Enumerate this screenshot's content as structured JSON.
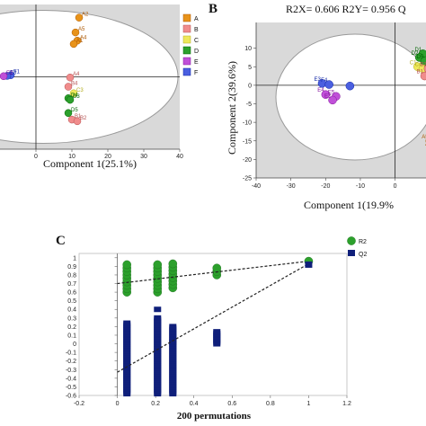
{
  "group_colors": {
    "A": "#e8931a",
    "B": "#f08c8c",
    "C": "#eee85a",
    "D": "#2ca02c",
    "E": "#c050d8",
    "F": "#4a5fe0"
  },
  "chart_data": [
    {
      "type": "scatter",
      "xlabel": "Component 1(25.1%)",
      "ylabel": "",
      "xlim": [
        -10,
        40
      ],
      "ylim": [
        -22,
        22
      ],
      "xticks": [
        0,
        10,
        20,
        30,
        40
      ],
      "legend": {
        "placement": "right",
        "entries": [
          "A",
          "B",
          "C",
          "D",
          "E",
          "F"
        ]
      },
      "points": [
        {
          "g": "A",
          "x": 12,
          "y": 18,
          "label": "A2"
        },
        {
          "g": "A",
          "x": 11,
          "y": 13.5,
          "label": "A5"
        },
        {
          "g": "A",
          "x": 11.5,
          "y": 11,
          "label": "A4"
        },
        {
          "g": "A",
          "x": 10.5,
          "y": 10,
          "label": "A1"
        },
        {
          "g": "F",
          "x": -7,
          "y": 0.5,
          "label": "F1"
        },
        {
          "g": "F",
          "x": -8,
          "y": 0.3,
          "label": "E3"
        },
        {
          "g": "E",
          "x": -9,
          "y": 0.2,
          "label": "E2"
        },
        {
          "g": "B",
          "x": 9.5,
          "y": -0.2,
          "label": "A4"
        },
        {
          "g": "B",
          "x": 9,
          "y": -3,
          "label": "B4"
        },
        {
          "g": "C",
          "x": 10.5,
          "y": -5,
          "label": "C3"
        },
        {
          "g": "D",
          "x": 9,
          "y": -6.5,
          "label": "D4"
        },
        {
          "g": "D",
          "x": 9.5,
          "y": -7,
          "label": "D3"
        },
        {
          "g": "D",
          "x": 9,
          "y": -11,
          "label": "D5"
        },
        {
          "g": "B",
          "x": 10,
          "y": -13,
          "label": "B1"
        },
        {
          "g": "B",
          "x": 11.5,
          "y": -13.5,
          "label": "B2"
        }
      ]
    },
    {
      "type": "scatter",
      "title": "R2X= 0.606  R2Y= 0.956  Q",
      "xlabel": "Component 1(19.9%",
      "ylabel": "Component 2(39.6%)",
      "xlim": [
        -40,
        12
      ],
      "ylim": [
        -25,
        15
      ],
      "xticks": [
        -40,
        -30,
        -20,
        -10,
        0,
        10
      ],
      "yticks": [
        -25,
        -20,
        -15,
        -10,
        -5,
        0,
        5,
        10
      ],
      "points": [
        {
          "g": "D",
          "x": 8,
          "y": 8.5,
          "label": "D1"
        },
        {
          "g": "D",
          "x": 7,
          "y": 7.5,
          "label": "D2"
        },
        {
          "g": "D",
          "x": 8.5,
          "y": 6.5,
          "label": "D5"
        },
        {
          "g": "C",
          "x": 6.5,
          "y": 5,
          "label": "C1"
        },
        {
          "g": "C",
          "x": 8,
          "y": 4.5,
          "label": "C4"
        },
        {
          "g": "B",
          "x": 9.5,
          "y": 4.5,
          "label": "B2"
        },
        {
          "g": "B",
          "x": 8.5,
          "y": 2.5,
          "label": "B1"
        },
        {
          "g": "F",
          "x": -21,
          "y": 0.5,
          "label": "E3"
        },
        {
          "g": "F",
          "x": -19,
          "y": 0.2,
          "label": "F4"
        },
        {
          "g": "F",
          "x": -13,
          "y": -0.2,
          "label": ""
        },
        {
          "g": "E",
          "x": -20,
          "y": -2.5,
          "label": "E4"
        },
        {
          "g": "E",
          "x": -17,
          "y": -3,
          "label": "E5"
        },
        {
          "g": "E",
          "x": -18,
          "y": -4,
          "label": "E2"
        },
        {
          "g": "A",
          "x": 10,
          "y": -15,
          "label": "A5"
        },
        {
          "g": "A",
          "x": 11,
          "y": -17,
          "label": "A3"
        },
        {
          "g": "A",
          "x": 11,
          "y": -18.5,
          "label": ""
        },
        {
          "g": "A",
          "x": 11.5,
          "y": -19.5,
          "label": ""
        }
      ]
    },
    {
      "type": "scatter",
      "xlabel": "200 permutations",
      "ylabel": "",
      "xlim": [
        -0.2,
        1.2
      ],
      "ylim": [
        -0.6,
        1.05
      ],
      "xticks": [
        -0.2,
        0,
        0.2,
        0.4,
        0.6,
        0.8,
        1,
        1.2
      ],
      "yticks": [
        -0.6,
        -0.5,
        -0.4,
        -0.3,
        -0.2,
        -0.1,
        0,
        0.1,
        0.2,
        0.3,
        0.4,
        0.5,
        0.6,
        0.7,
        0.8,
        0.9,
        1
      ],
      "legend": {
        "placement": "top-right",
        "entries": [
          "R2",
          "Q2"
        ]
      },
      "series": [
        {
          "name": "R2",
          "color": "#2ca02c",
          "columns": [
            {
              "x": 0.05,
              "ylo": 0.6,
              "yhi": 0.95
            },
            {
              "x": 0.21,
              "ylo": 0.6,
              "yhi": 0.95
            },
            {
              "x": 0.29,
              "ylo": 0.65,
              "yhi": 0.95
            },
            {
              "x": 0.52,
              "ylo": 0.8,
              "yhi": 0.88
            }
          ],
          "points": [
            {
              "x": 1,
              "y": 0.96
            }
          ],
          "regression": {
            "x0": 0,
            "y0": 0.7,
            "x1": 1,
            "y1": 0.96
          }
        },
        {
          "name": "Q2",
          "color": "#0f1f7a",
          "columns": [
            {
              "x": 0.05,
              "ylo": -0.58,
              "yhi": 0.24
            },
            {
              "x": 0.21,
              "ylo": -0.58,
              "yhi": 0.3
            },
            {
              "x": 0.29,
              "ylo": -0.58,
              "yhi": 0.2
            },
            {
              "x": 0.52,
              "ylo": 0.0,
              "yhi": 0.14
            }
          ],
          "extra_points": [
            {
              "x": 0.21,
              "y": 0.4
            },
            {
              "x": 0.29,
              "y": 0.02
            }
          ],
          "points": [
            {
              "x": 1,
              "y": 0.92
            }
          ],
          "regression": {
            "x0": 0,
            "y0": -0.33,
            "x1": 1,
            "y1": 0.93
          }
        }
      ]
    }
  ],
  "panels": {
    "a": {
      "letter": ""
    },
    "b": {
      "letter": "B"
    },
    "c": {
      "letter": "C"
    }
  }
}
